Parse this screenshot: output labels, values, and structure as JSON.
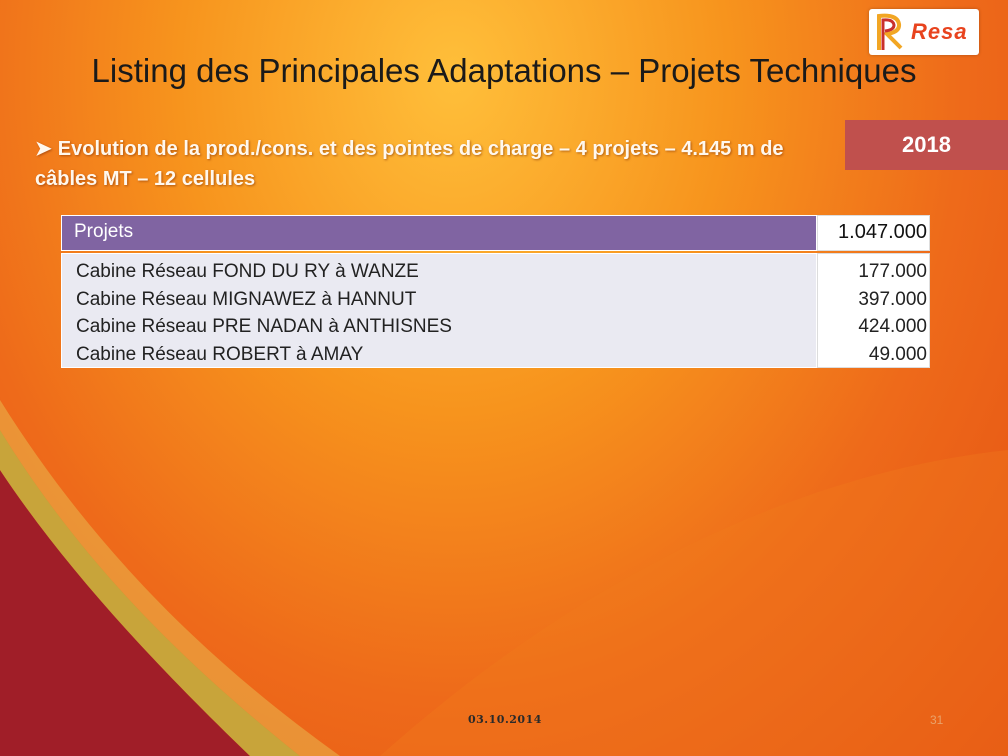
{
  "slide": {
    "title": "Listing des Principales Adaptations – Projets Techniques",
    "logo_text": "Resa",
    "bullet_text": "Evolution de la prod./cons. et des pointes de charge – 4 projets – 4.145 m de câbles MT – 12 cellules",
    "year": "2018"
  },
  "table": {
    "header": {
      "label": "Projets",
      "total": "1.047.000"
    },
    "rows": [
      {
        "project": "Cabine Réseau FOND DU RY à WANZE",
        "amount": "177.000"
      },
      {
        "project": "Cabine Réseau MIGNAWEZ à HANNUT",
        "amount": "397.000"
      },
      {
        "project": "Cabine Réseau PRE NADAN à ANTHISNES",
        "amount": "424.000"
      },
      {
        "project": "Cabine Réseau ROBERT à AMAY",
        "amount": "49.000"
      }
    ]
  },
  "footer": {
    "date": "03.10.2014",
    "page_number": "31"
  },
  "colors": {
    "header_purple": "#8064a2",
    "year_red": "#c0504d",
    "background_orange": "#ee6a1a",
    "swirl_dark_red": "#a01e28",
    "swirl_gold": "#c8a43a"
  }
}
